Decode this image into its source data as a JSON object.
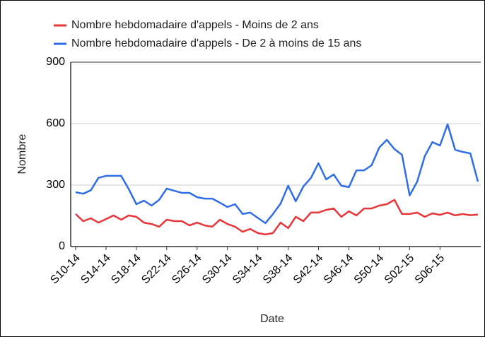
{
  "chart_data": {
    "type": "line",
    "x_label": "Date",
    "y_label": "Nombre",
    "categories": [
      "S10-14",
      null,
      null,
      null,
      "S14-14",
      null,
      null,
      null,
      "S18-14",
      null,
      null,
      null,
      "S22-14",
      null,
      null,
      null,
      "S26-14",
      null,
      null,
      null,
      "S30-14",
      null,
      null,
      null,
      "S34-14",
      null,
      null,
      null,
      "S38-14",
      null,
      null,
      null,
      "S42-14",
      null,
      null,
      null,
      "S46-14",
      null,
      null,
      null,
      "S50-14",
      null,
      null,
      null,
      "S02-15",
      null,
      null,
      null,
      "S06-15",
      null,
      null,
      null,
      null,
      null
    ],
    "series": [
      {
        "name": "Nombre hebdomadaire d'appels - Moins de 2 ans",
        "color": "#e8363a",
        "values": [
          159,
          124,
          138,
          117,
          134,
          152,
          131,
          152,
          145,
          117,
          110,
          97,
          131,
          124,
          124,
          103,
          117,
          103,
          97,
          131,
          110,
          97,
          72,
          86,
          66,
          59,
          66,
          117,
          90,
          145,
          124,
          166,
          166,
          179,
          186,
          145,
          172,
          152,
          186,
          186,
          200,
          207,
          228,
          159,
          159,
          166,
          145,
          162,
          155,
          166,
          152,
          159,
          153,
          156
        ]
      },
      {
        "name": "Nombre hebdomadaire d'appels - De 2 à moins de 15 ans",
        "color": "#2f6de8",
        "values": [
          265,
          258,
          275,
          335,
          345,
          345,
          345,
          280,
          207,
          224,
          200,
          228,
          283,
          272,
          262,
          262,
          241,
          234,
          234,
          214,
          193,
          207,
          159,
          166,
          140,
          114,
          159,
          210,
          297,
          221,
          293,
          335,
          407,
          328,
          352,
          297,
          290,
          372,
          372,
          397,
          483,
          521,
          476,
          448,
          250,
          317,
          441,
          510,
          493,
          597,
          472,
          462,
          455,
          317
        ]
      }
    ],
    "ylim": [
      0,
      900
    ],
    "yticks": [
      0,
      300,
      600,
      900
    ],
    "grid": true
  }
}
